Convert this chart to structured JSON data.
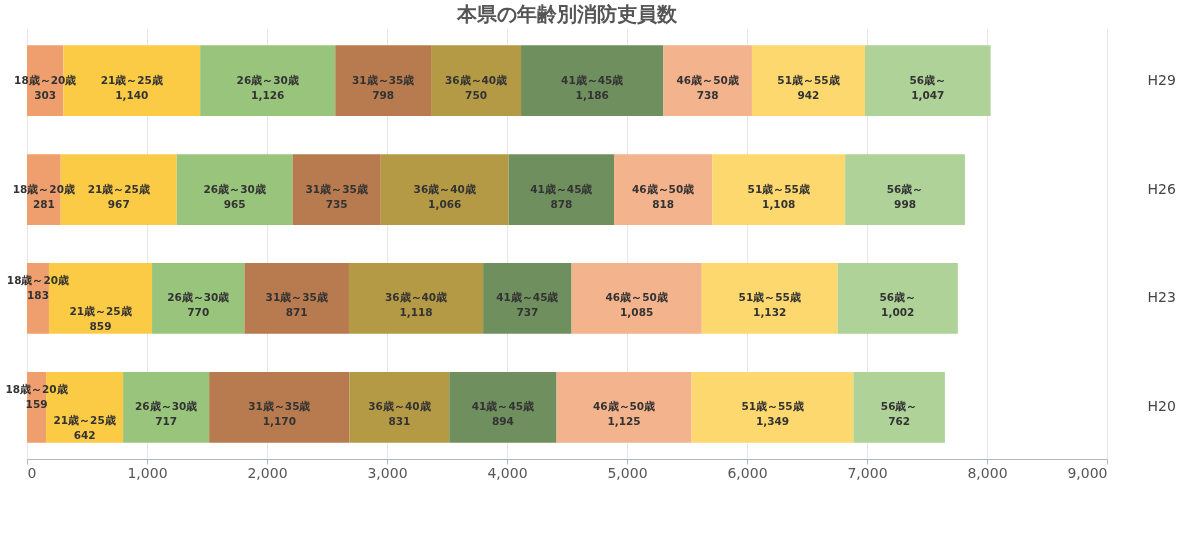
{
  "chart_data": {
    "type": "bar",
    "orientation": "horizontal",
    "stacked": true,
    "title": "本県の年齢別消防吏員数",
    "categories": [
      "H29",
      "H26",
      "H23",
      "H20"
    ],
    "series": [
      {
        "name": "18歳～20歳",
        "color": "#ef9f6e",
        "values": [
          303,
          281,
          183,
          159
        ],
        "value_labels": [
          "303",
          "281",
          "183",
          "159"
        ]
      },
      {
        "name": "21歳～25歳",
        "color": "#fccb46",
        "values": [
          1140,
          967,
          859,
          642
        ],
        "value_labels": [
          "1,140",
          "967",
          "859",
          "642"
        ]
      },
      {
        "name": "26歳～30歳",
        "color": "#98c47c",
        "values": [
          1126,
          965,
          770,
          717
        ],
        "value_labels": [
          "1,126",
          "965",
          "770",
          "717"
        ]
      },
      {
        "name": "31歳～35歳",
        "color": "#b87a4f",
        "values": [
          798,
          735,
          871,
          1170
        ],
        "value_labels": [
          "798",
          "735",
          "871",
          "1,170"
        ]
      },
      {
        "name": "36歳～40歳",
        "color": "#b59a46",
        "values": [
          750,
          1066,
          1118,
          831
        ],
        "value_labels": [
          "750",
          "1,066",
          "1,118",
          "831"
        ]
      },
      {
        "name": "41歳～45歳",
        "color": "#6f8f5e",
        "values": [
          1186,
          878,
          737,
          894
        ],
        "value_labels": [
          "1,186",
          "878",
          "737",
          "894"
        ]
      },
      {
        "name": "46歳～50歳",
        "color": "#f3b38c",
        "values": [
          738,
          818,
          1085,
          1125
        ],
        "value_labels": [
          "738",
          "818",
          "1,085",
          "1,125"
        ]
      },
      {
        "name": "51歳～55歳",
        "color": "#fdd86e",
        "values": [
          942,
          1108,
          1132,
          1349
        ],
        "value_labels": [
          "942",
          "1,108",
          "1,132",
          "1,349"
        ]
      },
      {
        "name": "56歳～",
        "color": "#aed298",
        "values": [
          1047,
          998,
          1002,
          762
        ],
        "value_labels": [
          "1,047",
          "998",
          "1,002",
          "762"
        ]
      }
    ],
    "xlim": [
      0,
      9000
    ],
    "xticks": [
      {
        "value": 0,
        "label": "0"
      },
      {
        "value": 1000,
        "label": "1,000"
      },
      {
        "value": 2000,
        "label": "2,000"
      },
      {
        "value": 3000,
        "label": "3,000"
      },
      {
        "value": 4000,
        "label": "4,000"
      },
      {
        "value": 5000,
        "label": "5,000"
      },
      {
        "value": 6000,
        "label": "6,000"
      },
      {
        "value": 7000,
        "label": "7,000"
      },
      {
        "value": 8000,
        "label": "8,000"
      },
      {
        "value": 9000,
        "label": "9,000"
      }
    ],
    "grid": "x",
    "legend": false
  }
}
